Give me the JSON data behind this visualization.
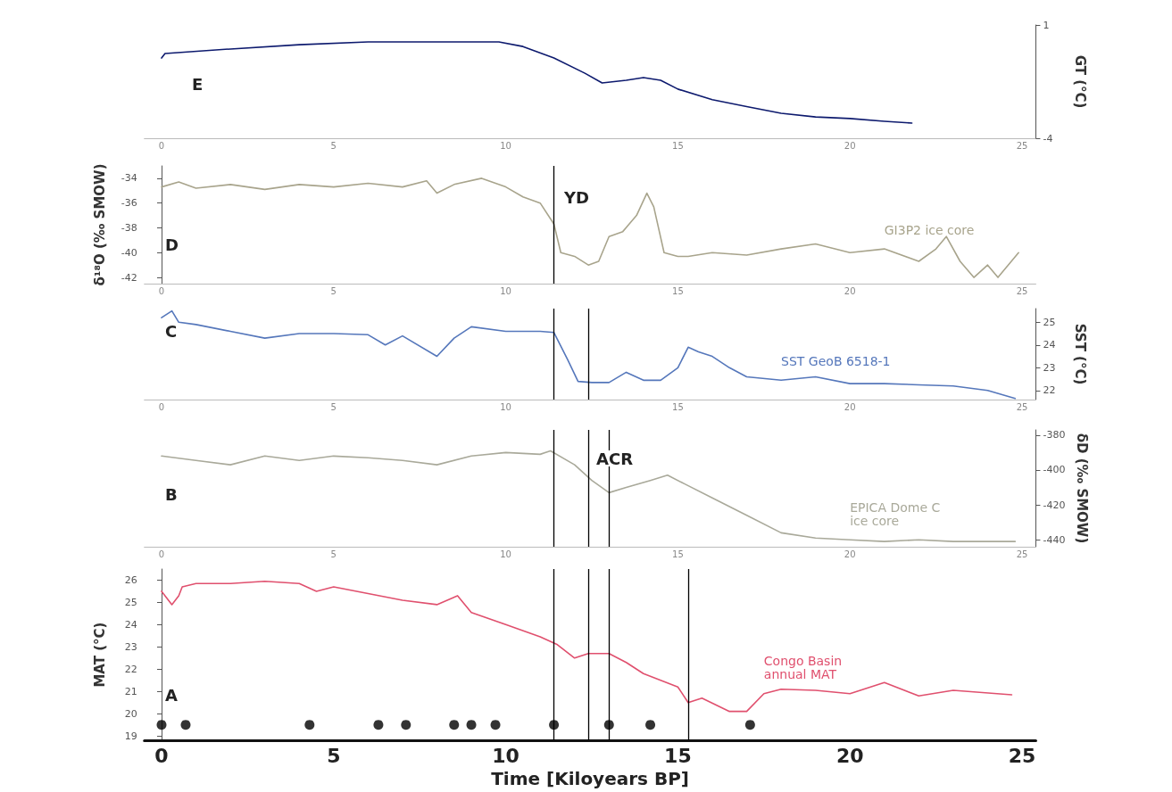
{
  "chart_data": [
    {
      "type": "line",
      "xlim": [
        -0.5,
        25.4
      ],
      "xticks": [
        0,
        5,
        10,
        15,
        20,
        25
      ],
      "y2lim": [
        -4,
        1
      ],
      "y2ticks": [
        -4,
        1
      ],
      "y2label": "GT (°C)",
      "marker": "none",
      "series": [
        {
          "color": "#0d1a6e",
          "axis": "y2",
          "x": [
            0,
            0.1,
            2,
            4,
            6,
            8,
            9.8,
            10.5,
            11.4,
            12.3,
            12.8,
            13.5,
            14,
            14.5,
            15,
            16,
            17,
            18,
            19,
            20,
            21,
            21.8
          ],
          "values": [
            -0.46,
            -0.26,
            -0.06,
            0.13,
            0.25,
            0.25,
            0.25,
            0.05,
            -0.46,
            -1.13,
            -1.56,
            -1.44,
            -1.32,
            -1.44,
            -1.83,
            -2.3,
            -2.6,
            -2.9,
            -3.06,
            -3.13,
            -3.25,
            -3.33
          ]
        }
      ],
      "annotations": [
        "E"
      ]
    },
    {
      "type": "line",
      "xlim": [
        -0.5,
        25.4
      ],
      "xticks": [
        0,
        5,
        10,
        15,
        20,
        25
      ],
      "ylim": [
        -42.5,
        -33
      ],
      "yticks": [
        -42,
        -40,
        -38,
        -36,
        -34
      ],
      "ylabel": "δ¹⁸O (‰ SMOW)",
      "marker": "none",
      "series": [
        {
          "name": "GI3P2 ice core",
          "color": "#a8a48c",
          "x": [
            0,
            0.5,
            1,
            2,
            3,
            4,
            5,
            6,
            7,
            7.7,
            8,
            8.5,
            9.3,
            10,
            10.5,
            11,
            11.4,
            11.6,
            12,
            12.4,
            12.7,
            13,
            13.4,
            13.8,
            14.1,
            14.3,
            14.6,
            15,
            15.3,
            16,
            17,
            18,
            19,
            20,
            21,
            22,
            22.5,
            22.8,
            23.2,
            23.6,
            24,
            24.3,
            24.9
          ],
          "values": [
            -34.7,
            -34.3,
            -34.8,
            -34.5,
            -34.9,
            -34.5,
            -34.7,
            -34.4,
            -34.7,
            -34.2,
            -35.2,
            -34.5,
            -34,
            -34.7,
            -35.5,
            -36,
            -37.7,
            -40,
            -40.3,
            -41,
            -40.7,
            -38.7,
            -38.3,
            -37,
            -35.2,
            -36.3,
            -40,
            -40.3,
            -40.3,
            -40,
            -40.2,
            -39.7,
            -39.3,
            -40,
            -39.7,
            -40.7,
            -39.7,
            -38.7,
            -40.7,
            -42,
            -41,
            -42,
            -40
          ]
        }
      ],
      "ref_lines": [
        {
          "axis": "x",
          "value": 11.4,
          "color": "#000000"
        }
      ],
      "annotations": [
        "D",
        "YD"
      ]
    },
    {
      "type": "line",
      "xlim": [
        -0.5,
        25.4
      ],
      "xticks": [
        0,
        5,
        10,
        15,
        20,
        25
      ],
      "y2lim": [
        21.6,
        25.6
      ],
      "y2ticks": [
        22,
        23,
        24,
        25
      ],
      "y2label": "SST (°C)",
      "marker": "none",
      "series": [
        {
          "name": "SST GeoB 6518-1",
          "color": "#5577bb",
          "axis": "y2",
          "x": [
            0,
            0.3,
            0.5,
            1,
            2,
            3,
            4,
            5,
            6,
            6.5,
            7,
            8,
            8.5,
            9,
            10,
            11,
            11.4,
            11.8,
            12.1,
            12.5,
            13,
            13.5,
            14,
            14.5,
            15,
            15.3,
            15.6,
            16,
            16.5,
            17,
            18,
            19,
            20,
            21,
            22,
            23,
            24,
            24.8
          ],
          "values": [
            25.2,
            25.5,
            25,
            24.9,
            24.6,
            24.3,
            24.5,
            24.5,
            24.45,
            24,
            24.4,
            23.5,
            24.3,
            24.8,
            24.6,
            24.6,
            24.55,
            23.35,
            22.4,
            22.35,
            22.35,
            22.8,
            22.45,
            22.45,
            23,
            23.9,
            23.7,
            23.5,
            23,
            22.6,
            22.45,
            22.6,
            22.3,
            22.3,
            22.25,
            22.2,
            22,
            21.65
          ]
        }
      ],
      "ref_lines": [
        {
          "axis": "x",
          "value": 11.4,
          "color": "#000000"
        },
        {
          "axis": "x",
          "value": 12.4,
          "color": "#000000"
        }
      ],
      "annotations": [
        "C"
      ]
    },
    {
      "type": "line",
      "xlim": [
        -0.5,
        25.4
      ],
      "xticks": [
        0,
        5,
        10,
        15,
        20,
        25
      ],
      "y2lim": [
        -444,
        -377
      ],
      "y2ticks": [
        -440,
        -420,
        -400,
        -380
      ],
      "y2label": "δD (‰ SMOW)",
      "marker": "none",
      "series": [
        {
          "name": "EPICA Dome C\nice core",
          "color": "#a9a99a",
          "axis": "y2",
          "x": [
            0,
            1,
            2,
            3,
            4,
            5,
            6,
            7,
            8,
            9,
            10,
            11,
            11.3,
            12,
            12.5,
            13,
            13.5,
            14.2,
            14.7,
            15.2,
            16,
            17,
            18,
            19,
            20,
            21,
            22,
            23,
            24,
            24.8
          ],
          "values": [
            -392,
            -394.5,
            -397,
            -392,
            -394.5,
            -392,
            -393,
            -394.5,
            -397,
            -392,
            -390,
            -391,
            -389,
            -397,
            -406,
            -413,
            -410,
            -406,
            -403,
            -408,
            -416,
            -426,
            -436,
            -439,
            -440,
            -441,
            -440,
            -441,
            -441,
            -441
          ]
        }
      ],
      "ref_lines": [
        {
          "axis": "x",
          "value": 11.4,
          "color": "#000000"
        },
        {
          "axis": "x",
          "value": 12.4,
          "color": "#000000"
        },
        {
          "axis": "x",
          "value": 13,
          "color": "#000000"
        }
      ],
      "annotations": [
        "B",
        "ACR"
      ]
    },
    {
      "type": "line",
      "xlim": [
        -0.5,
        25.4
      ],
      "xticks": [
        0,
        5,
        10,
        15,
        20,
        25
      ],
      "xlabel": "Time [Kiloyears BP]",
      "ylim": [
        18.8,
        26.5
      ],
      "yticks": [
        19,
        20,
        21,
        22,
        23,
        24,
        25,
        26
      ],
      "ylabel": "MAT (°C)",
      "marker": "none",
      "series": [
        {
          "name": "Congo Basin\nannual MAT",
          "color": "#e0506e",
          "x": [
            0,
            0.3,
            0.5,
            0.6,
            1,
            2,
            3,
            4,
            4.5,
            5,
            6,
            7,
            8,
            8.6,
            9,
            10,
            11,
            11.5,
            12,
            12.4,
            13,
            13.5,
            14,
            15,
            15.3,
            15.7,
            16.5,
            17,
            17.5,
            18,
            19,
            20,
            21,
            22,
            23,
            24.7
          ],
          "values": [
            25.5,
            24.9,
            25.3,
            25.7,
            25.85,
            25.85,
            25.95,
            25.85,
            25.5,
            25.7,
            25.4,
            25.1,
            24.9,
            25.3,
            24.55,
            24,
            23.45,
            23.1,
            22.5,
            22.7,
            22.7,
            22.3,
            21.8,
            21.2,
            20.5,
            20.7,
            20.1,
            20.1,
            20.9,
            21.1,
            21.05,
            20.9,
            21.4,
            20.8,
            21.05,
            20.85
          ]
        },
        {
          "type": "scatter",
          "marker": "circle",
          "color": "#000000",
          "x": [
            0,
            0.7,
            4.3,
            6.3,
            7.1,
            8.5,
            9,
            9.7,
            11.4,
            13,
            14.2,
            17.1
          ],
          "values": [
            19.5,
            19.5,
            19.5,
            19.5,
            19.5,
            19.5,
            19.5,
            19.5,
            19.5,
            19.5,
            19.5,
            19.5
          ]
        }
      ],
      "ref_lines": [
        {
          "axis": "x",
          "value": 11.4,
          "color": "#000000"
        },
        {
          "axis": "x",
          "value": 12.4,
          "color": "#000000"
        },
        {
          "axis": "x",
          "value": 13,
          "color": "#000000"
        },
        {
          "axis": "x",
          "value": 15.3,
          "color": "#000000"
        }
      ],
      "annotations": [
        "A"
      ]
    }
  ]
}
